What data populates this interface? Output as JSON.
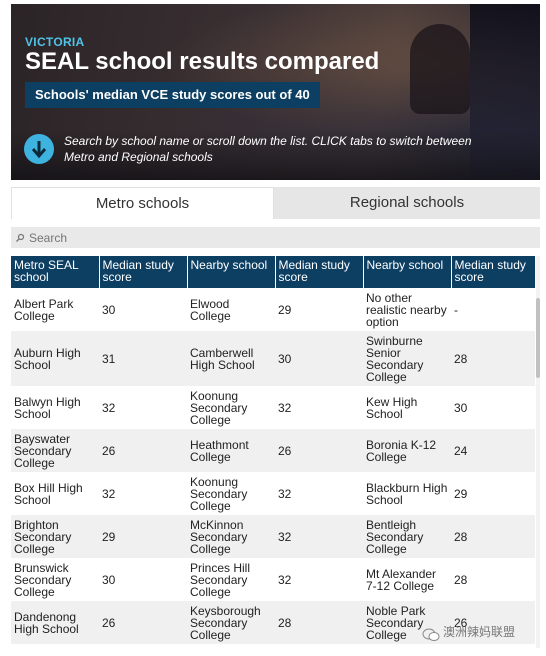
{
  "header": {
    "kicker": "VICTORIA",
    "title": "SEAL school results compared",
    "subtitle": "Schools' median VCE study scores out of 40",
    "instruction": "Search by school name or scroll down the list. CLICK tabs to switch between Metro and Regional schools",
    "instruction_icon": "arrow-down-circle-icon"
  },
  "tabs": [
    {
      "label": "Metro schools",
      "active": true
    },
    {
      "label": "Regional schools",
      "active": false
    }
  ],
  "search": {
    "placeholder": "Search",
    "icon": "search-icon"
  },
  "table": {
    "headers": [
      "Metro SEAL school",
      "Median study score",
      "Nearby school",
      "Median study score",
      "Nearby school",
      "Median study score"
    ],
    "rows": [
      [
        "Albert Park College",
        "30",
        "Elwood College",
        "29",
        "No other realistic nearby option",
        "-"
      ],
      [
        "Auburn High School",
        "31",
        "Camberwell High School",
        "30",
        "Swinburne Senior Secondary College",
        "28"
      ],
      [
        "Balwyn High School",
        "32",
        "Koonung Secondary College",
        "32",
        "Kew High School",
        "30"
      ],
      [
        "Bayswater Secondary College",
        "26",
        "Heathmont College",
        "26",
        "Boronia K-12 College",
        "24"
      ],
      [
        "Box Hill High School",
        "32",
        "Koonung Secondary College",
        "32",
        "Blackburn High School",
        "29"
      ],
      [
        "Brighton Secondary College",
        "29",
        "McKinnon Secondary College",
        "32",
        "Bentleigh Secondary College",
        "28"
      ],
      [
        "Brunswick Secondary College",
        "30",
        "Princes Hill Secondary College",
        "32",
        "Mt Alexander 7-12 College",
        "28"
      ],
      [
        "Dandenong High School",
        "26",
        "Keysborough Secondary College",
        "28",
        "Noble Park Secondary College",
        "26"
      ]
    ]
  },
  "watermark": {
    "text": "澳洲辣妈联盟",
    "icon": "wechat-icon"
  },
  "colors": {
    "header_bg": "#0d3f63",
    "accent": "#3fb3df",
    "row_alt": "#f0f0f0"
  }
}
